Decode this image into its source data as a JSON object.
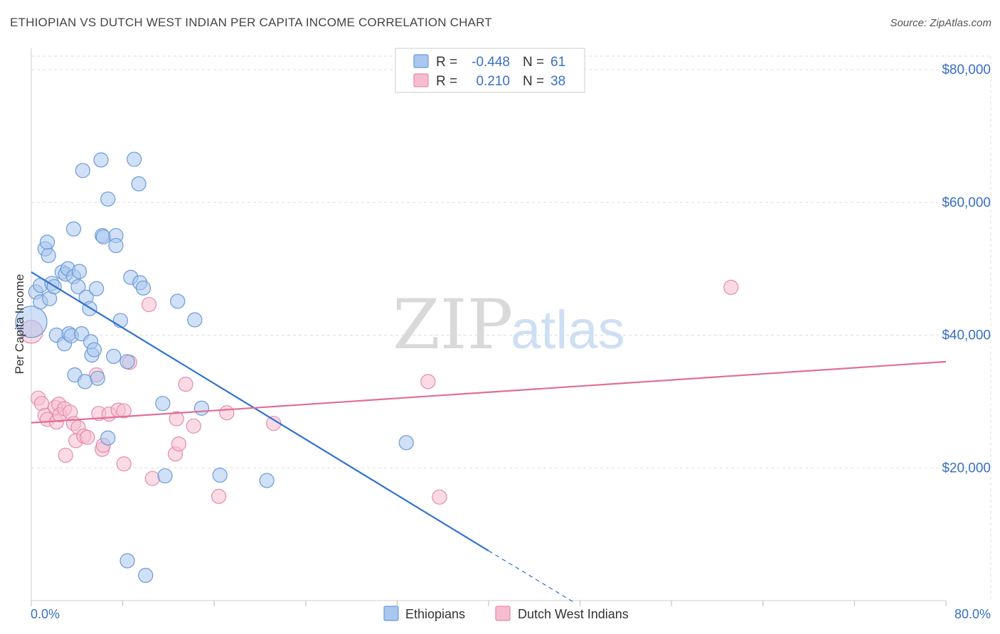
{
  "header": {
    "title": "ETHIOPIAN VS DUTCH WEST INDIAN PER CAPITA INCOME CORRELATION CHART",
    "source": "Source: ZipAtlas.com"
  },
  "watermark": {
    "part1": "ZIP",
    "part2": "atlas"
  },
  "colors": {
    "blue_fill": "#a9c7ef",
    "blue_stroke": "#6a9ad8",
    "blue_line": "#2f72d0",
    "pink_fill": "#f6bdd0",
    "pink_stroke": "#e68aab",
    "pink_line": "#e36d97",
    "grid": "#dddddd",
    "axis_text": "#3a6fc4"
  },
  "legend": {
    "row1": {
      "r_label": "R =",
      "r_value": "-0.448",
      "n_label": "N =",
      "n_value": "61"
    },
    "row2": {
      "r_label": "R =",
      "r_value": "0.210",
      "n_label": "N =",
      "n_value": "38"
    }
  },
  "chart_data": {
    "type": "scatter",
    "title": "ETHIOPIAN VS DUTCH WEST INDIAN PER CAPITA INCOME CORRELATION CHART",
    "xlabel": "",
    "ylabel": "Per Capita Income",
    "xlim": [
      0,
      80
    ],
    "ylim": [
      0,
      80000
    ],
    "x_tick_labels": {
      "min": "0.0%",
      "max": "80.0%"
    },
    "y_ticks": [
      {
        "value": 20000,
        "label": "$20,000"
      },
      {
        "value": 40000,
        "label": "$40,000"
      },
      {
        "value": 60000,
        "label": "$60,000"
      },
      {
        "value": 80000,
        "label": "$80,000"
      }
    ],
    "legend_position": "top-center",
    "series": [
      {
        "name": "Ethiopians",
        "r": -0.448,
        "n": 61,
        "trend": {
          "x0": 0,
          "y0": 49500,
          "x1": 40,
          "y1": 7500,
          "dash_to_x": 47.5,
          "dash_to_y": -300
        },
        "points": [
          [
            0.0,
            42000,
            22
          ],
          [
            0.4,
            46500,
            10
          ],
          [
            0.8,
            45000,
            10
          ],
          [
            0.8,
            47500,
            10
          ],
          [
            1.2,
            53000,
            10
          ],
          [
            1.4,
            54000,
            10
          ],
          [
            1.5,
            52000,
            10
          ],
          [
            1.6,
            45500,
            10
          ],
          [
            1.8,
            47800,
            10
          ],
          [
            2.0,
            47300,
            10
          ],
          [
            2.2,
            40000,
            10
          ],
          [
            2.7,
            49500,
            10
          ],
          [
            2.9,
            38700,
            10
          ],
          [
            3.0,
            49200,
            10
          ],
          [
            3.2,
            50000,
            10
          ],
          [
            3.3,
            40200,
            10
          ],
          [
            3.5,
            39900,
            10
          ],
          [
            3.7,
            48800,
            10
          ],
          [
            3.7,
            56000,
            10
          ],
          [
            3.8,
            34000,
            10
          ],
          [
            4.1,
            47300,
            10
          ],
          [
            4.2,
            49600,
            10
          ],
          [
            4.4,
            40200,
            10
          ],
          [
            4.5,
            64800,
            10
          ],
          [
            4.7,
            33000,
            10
          ],
          [
            4.8,
            45700,
            10
          ],
          [
            5.1,
            44000,
            10
          ],
          [
            5.2,
            39000,
            10
          ],
          [
            5.3,
            37000,
            10
          ],
          [
            5.5,
            37800,
            10
          ],
          [
            5.7,
            47000,
            10
          ],
          [
            5.8,
            33500,
            10
          ],
          [
            6.1,
            66400,
            10
          ],
          [
            6.2,
            55000,
            10
          ],
          [
            6.3,
            54800,
            10
          ],
          [
            6.7,
            60500,
            10
          ],
          [
            6.7,
            24500,
            10
          ],
          [
            7.2,
            36800,
            10
          ],
          [
            7.4,
            55000,
            10
          ],
          [
            7.4,
            53500,
            10
          ],
          [
            7.8,
            42200,
            10
          ],
          [
            8.4,
            36000,
            10
          ],
          [
            8.4,
            6000,
            10
          ],
          [
            8.7,
            48700,
            10
          ],
          [
            9.0,
            66500,
            10
          ],
          [
            9.4,
            62800,
            10
          ],
          [
            9.5,
            47900,
            10
          ],
          [
            9.8,
            47100,
            10
          ],
          [
            10.0,
            3800,
            10
          ],
          [
            11.5,
            29700,
            10
          ],
          [
            11.7,
            18800,
            10
          ],
          [
            12.8,
            45100,
            10
          ],
          [
            14.3,
            42300,
            10
          ],
          [
            14.9,
            29000,
            10
          ],
          [
            16.5,
            18900,
            10
          ],
          [
            20.6,
            18100,
            10
          ],
          [
            32.8,
            23800,
            10
          ]
        ]
      },
      {
        "name": "Dutch West Indians",
        "r": 0.21,
        "n": 38,
        "trend": {
          "x0": 0,
          "y0": 26800,
          "x1": 80,
          "y1": 36000
        },
        "points": [
          [
            0.0,
            40500,
            16
          ],
          [
            0.6,
            30500,
            10
          ],
          [
            0.9,
            29700,
            10
          ],
          [
            1.2,
            27900,
            10
          ],
          [
            1.4,
            27300,
            10
          ],
          [
            2.2,
            26900,
            10
          ],
          [
            2.1,
            29100,
            10
          ],
          [
            2.4,
            29600,
            10
          ],
          [
            2.5,
            28000,
            10
          ],
          [
            2.9,
            28900,
            10
          ],
          [
            3.0,
            21900,
            10
          ],
          [
            3.4,
            28400,
            10
          ],
          [
            3.7,
            26700,
            10
          ],
          [
            3.9,
            24100,
            10
          ],
          [
            4.1,
            26100,
            10
          ],
          [
            4.6,
            24800,
            10
          ],
          [
            4.9,
            24600,
            10
          ],
          [
            5.7,
            34000,
            10
          ],
          [
            5.9,
            28200,
            10
          ],
          [
            6.2,
            22800,
            10
          ],
          [
            6.3,
            23400,
            10
          ],
          [
            6.8,
            28100,
            10
          ],
          [
            7.6,
            28700,
            10
          ],
          [
            8.1,
            28600,
            10
          ],
          [
            8.1,
            20600,
            10
          ],
          [
            8.6,
            35900,
            10
          ],
          [
            10.3,
            44600,
            10
          ],
          [
            10.6,
            18400,
            10
          ],
          [
            12.6,
            22100,
            10
          ],
          [
            12.7,
            27400,
            10
          ],
          [
            12.9,
            23600,
            10
          ],
          [
            13.5,
            32600,
            10
          ],
          [
            14.2,
            26300,
            10
          ],
          [
            16.4,
            15700,
            10
          ],
          [
            17.1,
            28300,
            10
          ],
          [
            21.2,
            26700,
            10
          ],
          [
            34.7,
            33000,
            10
          ],
          [
            35.7,
            15600,
            10
          ],
          [
            61.2,
            47200,
            10
          ]
        ]
      }
    ]
  }
}
